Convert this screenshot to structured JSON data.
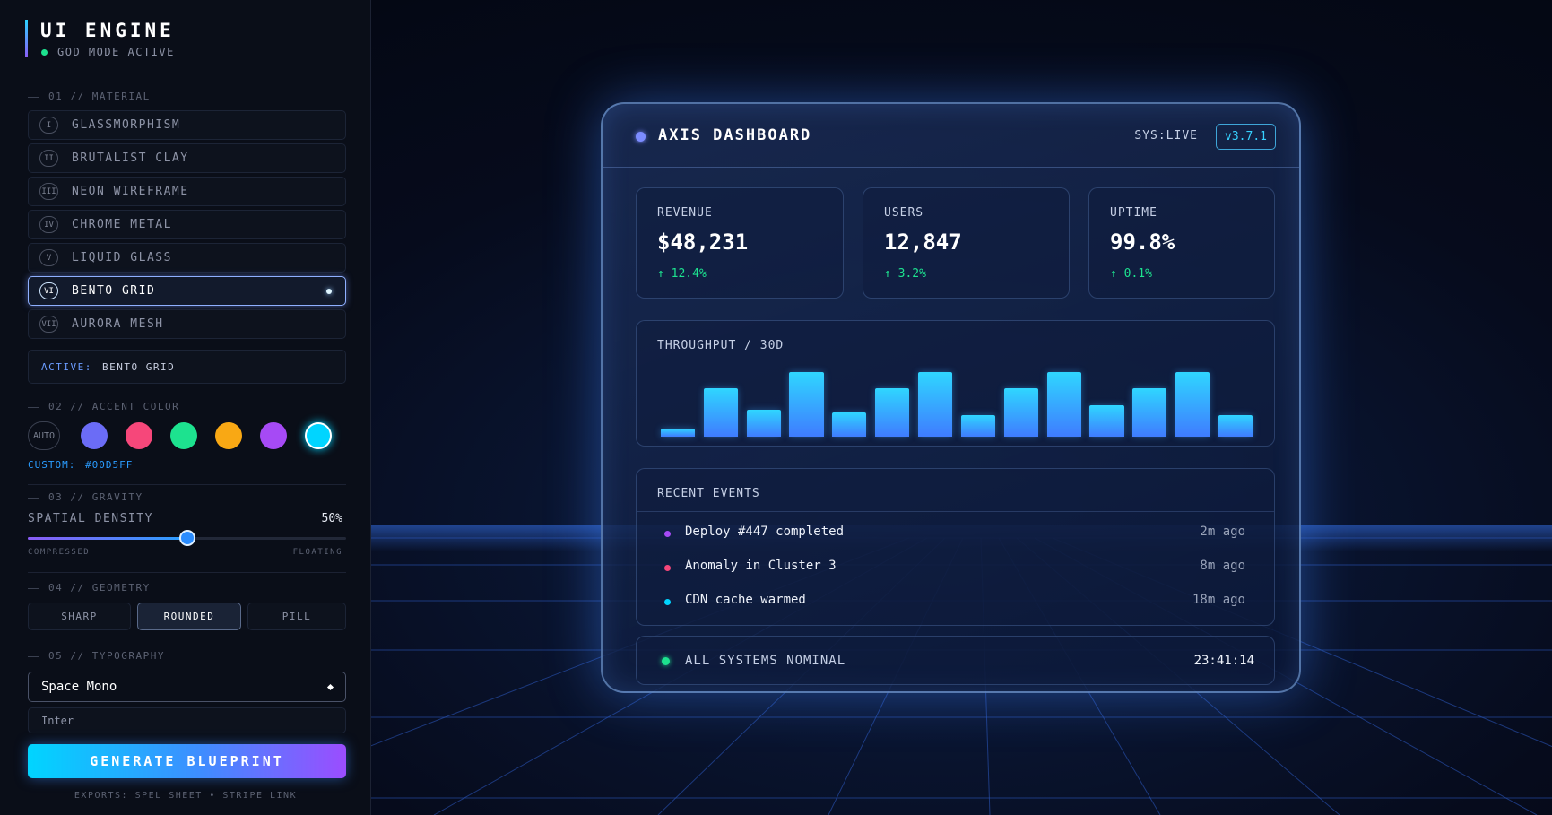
{
  "sidebar": {
    "title": "UI ENGINE",
    "status": "GOD MODE ACTIVE",
    "material": {
      "heading": "01 // MATERIAL",
      "selected": 5,
      "options": [
        {
          "numeral": "I",
          "label": "GLASSMORPHISM"
        },
        {
          "numeral": "II",
          "label": "BRUTALIST CLAY"
        },
        {
          "numeral": "III",
          "label": "NEON WIREFRAME"
        },
        {
          "numeral": "IV",
          "label": "CHROME METAL"
        },
        {
          "numeral": "V",
          "label": "LIQUID GLASS"
        },
        {
          "numeral": "VI",
          "label": "BENTO GRID"
        },
        {
          "numeral": "VII",
          "label": "AURORA MESH"
        }
      ],
      "active_label": "ACTIVE:",
      "active_value": "BENTO GRID"
    },
    "accent": {
      "heading": "02 // ACCENT COLOR",
      "auto": "AUTO",
      "colors": [
        "#6b6cf6",
        "#f6477a",
        "#1de28f",
        "#f9a814",
        "#a64af5",
        "#00d5ff"
      ],
      "selected": 5,
      "custom_label": "CUSTOM:",
      "custom_value": "#00D5FF"
    },
    "gravity": {
      "heading": "03 // GRAVITY",
      "label": "SPATIAL DENSITY",
      "value": 50,
      "value_label": "50%",
      "min_label": "COMPRESSED",
      "max_label": "FLOATING"
    },
    "geometry": {
      "heading": "04 // GEOMETRY",
      "options": [
        "SHARP",
        "ROUNDED",
        "PILL"
      ],
      "selected": 1
    },
    "typography": {
      "heading": "05 // TYPOGRAPHY",
      "primary": "Space Mono",
      "secondary": "Inter"
    },
    "button": "GENERATE BLUEPRINT",
    "footer": "EXPORTS: SPEL SHEET • STRIPE LINK"
  },
  "dashboard": {
    "title": "AXIS DASHBOARD",
    "status": "SYS:LIVE",
    "version": "v3.7.1",
    "metrics": [
      {
        "label": "REVENUE",
        "value": "$48,231",
        "change": "↑ 12.4%"
      },
      {
        "label": "USERS",
        "value": "12,847",
        "change": "↑ 3.2%"
      },
      {
        "label": "UPTIME",
        "value": "99.8%",
        "change": "↑ 0.1%"
      }
    ],
    "throughput": {
      "title": "THROUGHPUT / 30D",
      "values": [
        12,
        75,
        42,
        100,
        37,
        75,
        100,
        34,
        75,
        100,
        48,
        75,
        100,
        34
      ],
      "ylim": [
        0,
        100
      ]
    },
    "events": {
      "title": "RECENT EVENTS",
      "items": [
        {
          "text": "Deploy #447 completed",
          "time": "2m ago",
          "color": "#a64af5"
        },
        {
          "text": "Anomaly in Cluster 3",
          "time": "8m ago",
          "color": "#f6477a"
        },
        {
          "text": "CDN cache warmed",
          "time": "18m ago",
          "color": "#00d5ff"
        }
      ]
    },
    "footer": {
      "status": "ALL SYSTEMS NOMINAL",
      "time": "23:41:14"
    }
  }
}
